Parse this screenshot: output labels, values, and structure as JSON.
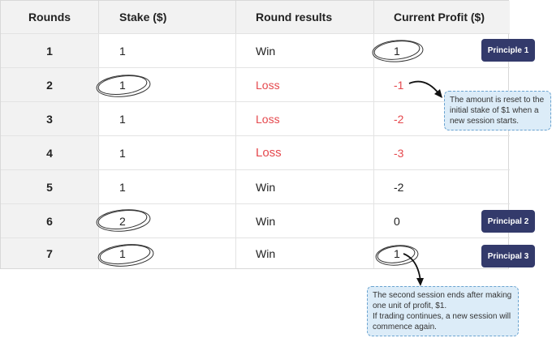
{
  "headers": [
    "Rounds",
    "Stake ($)",
    "Round results",
    "Current Profit ($)"
  ],
  "rows": [
    {
      "round": "1",
      "stake": "1",
      "result": "Win",
      "profit": "1"
    },
    {
      "round": "2",
      "stake": "1",
      "result": "Loss",
      "profit": "-1"
    },
    {
      "round": "3",
      "stake": "1",
      "result": "Loss",
      "profit": "-2"
    },
    {
      "round": "4",
      "stake": "1",
      "result": "Loss",
      "profit": "-3"
    },
    {
      "round": "5",
      "stake": "1",
      "result": "Win",
      "profit": "-2"
    },
    {
      "round": "6",
      "stake": "2",
      "result": "Win",
      "profit": "0"
    },
    {
      "round": "7",
      "stake": "1",
      "result": "Win",
      "profit": "1"
    }
  ],
  "badges": {
    "principle1": "Principle 1",
    "principal2": "Principal 2",
    "principal3": "Principal 3"
  },
  "notes": {
    "reset_line1": "The amount is reset to the",
    "reset_line2": "initial stake of $1 when a",
    "reset_line3": "new session starts.",
    "session_line1": "The second session ends after making",
    "session_line2": "one unit of profit, $1.",
    "session_line3": "If trading continues, a new session will",
    "session_line4": "commence again."
  },
  "colors": {
    "loss": "#e5484d",
    "badge": "#333a6b",
    "note_bg": "#dcecf8",
    "note_border": "#6aa3d0"
  }
}
